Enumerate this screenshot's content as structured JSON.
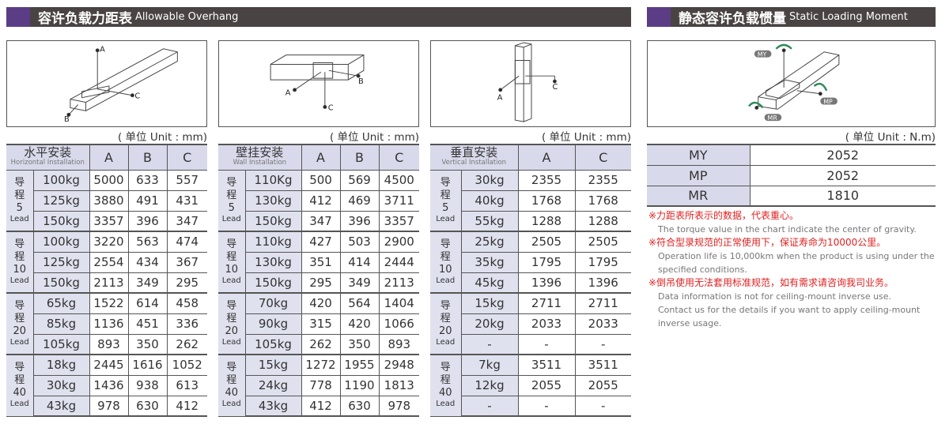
{
  "headers": {
    "left": {
      "cn": "容许负载力距表",
      "en": "Allowable Overhang"
    },
    "right": {
      "cn": "静态容许负载惯量",
      "en": "Static Loading Moment"
    }
  },
  "diagram_labels": {
    "a": "A",
    "b": "B",
    "c": "C",
    "my": "MY",
    "mp": "MP",
    "mr": "MR"
  },
  "units": {
    "mm": "( 单位 Unit : mm)",
    "nm": "( 单位 Unit : N.m)"
  },
  "tables": [
    {
      "title_cn": "水平安装",
      "title_en": "Horizontal Installation",
      "columns": [
        "A",
        "B",
        "C"
      ],
      "groups": [
        {
          "lead_cn": [
            "导",
            "程"
          ],
          "lead": "5",
          "lead_en": "Lead",
          "rows": [
            [
              "100kg",
              "5000",
              "633",
              "557"
            ],
            [
              "125kg",
              "3880",
              "491",
              "431"
            ],
            [
              "150kg",
              "3357",
              "396",
              "347"
            ]
          ]
        },
        {
          "lead_cn": [
            "导",
            "程"
          ],
          "lead": "10",
          "lead_en": "Lead",
          "rows": [
            [
              "100kg",
              "3220",
              "563",
              "474"
            ],
            [
              "125kg",
              "2554",
              "434",
              "367"
            ],
            [
              "150kg",
              "2113",
              "349",
              "295"
            ]
          ]
        },
        {
          "lead_cn": [
            "导",
            "程"
          ],
          "lead": "20",
          "lead_en": "Lead",
          "rows": [
            [
              "65kg",
              "1522",
              "614",
              "458"
            ],
            [
              "85kg",
              "1136",
              "451",
              "336"
            ],
            [
              "105kg",
              "893",
              "350",
              "262"
            ]
          ]
        },
        {
          "lead_cn": [
            "导",
            "程"
          ],
          "lead": "40",
          "lead_en": "Lead",
          "rows": [
            [
              "18kg",
              "2445",
              "1616",
              "1052"
            ],
            [
              "30kg",
              "1436",
              "938",
              "613"
            ],
            [
              "43kg",
              "978",
              "630",
              "412"
            ]
          ]
        }
      ]
    },
    {
      "title_cn": "壁挂安装",
      "title_en": "Wall Installation",
      "columns": [
        "A",
        "B",
        "C"
      ],
      "groups": [
        {
          "lead_cn": [
            "导",
            "程"
          ],
          "lead": "5",
          "lead_en": "Lead",
          "rows": [
            [
              "110Kg",
              "500",
              "569",
              "4500"
            ],
            [
              "130kg",
              "412",
              "469",
              "3711"
            ],
            [
              "150kg",
              "347",
              "396",
              "3357"
            ]
          ]
        },
        {
          "lead_cn": [
            "导",
            "程"
          ],
          "lead": "10",
          "lead_en": "Lead",
          "rows": [
            [
              "110kg",
              "427",
              "503",
              "2900"
            ],
            [
              "130kg",
              "351",
              "414",
              "2444"
            ],
            [
              "150kg",
              "295",
              "349",
              "2113"
            ]
          ]
        },
        {
          "lead_cn": [
            "导",
            "程"
          ],
          "lead": "20",
          "lead_en": "Lead",
          "rows": [
            [
              "70kg",
              "420",
              "564",
              "1404"
            ],
            [
              "90kg",
              "315",
              "420",
              "1066"
            ],
            [
              "105kg",
              "262",
              "350",
              "893"
            ]
          ]
        },
        {
          "lead_cn": [
            "导",
            "程"
          ],
          "lead": "40",
          "lead_en": "Lead",
          "rows": [
            [
              "15kg",
              "1272",
              "1955",
              "2948"
            ],
            [
              "24kg",
              "778",
              "1190",
              "1813"
            ],
            [
              "43kg",
              "412",
              "630",
              "978"
            ]
          ]
        }
      ]
    },
    {
      "title_cn": "垂直安装",
      "title_en": "Vertical Installation",
      "columns": [
        "A",
        "C"
      ],
      "groups": [
        {
          "lead_cn": [
            "导",
            "程"
          ],
          "lead": "5",
          "lead_en": "Lead",
          "rows": [
            [
              "30kg",
              "2355",
              "2355"
            ],
            [
              "40kg",
              "1768",
              "1768"
            ],
            [
              "55kg",
              "1288",
              "1288"
            ]
          ]
        },
        {
          "lead_cn": [
            "导",
            "程"
          ],
          "lead": "10",
          "lead_en": "Lead",
          "rows": [
            [
              "25kg",
              "2505",
              "2505"
            ],
            [
              "35kg",
              "1795",
              "1795"
            ],
            [
              "45kg",
              "1396",
              "1396"
            ]
          ]
        },
        {
          "lead_cn": [
            "导",
            "程"
          ],
          "lead": "20",
          "lead_en": "Lead",
          "rows": [
            [
              "15kg",
              "2711",
              "2711"
            ],
            [
              "20kg",
              "2033",
              "2033"
            ],
            [
              "-",
              "-",
              "-"
            ]
          ]
        },
        {
          "lead_cn": [
            "导",
            "程"
          ],
          "lead": "40",
          "lead_en": "Lead",
          "rows": [
            [
              "7kg",
              "3511",
              "3511"
            ],
            [
              "12kg",
              "2055",
              "2055"
            ],
            [
              "-",
              "-",
              "-"
            ]
          ]
        }
      ]
    }
  ],
  "moment": [
    [
      "MY",
      "2052"
    ],
    [
      "MP",
      "2052"
    ],
    [
      "MR",
      "1810"
    ]
  ],
  "notes": [
    {
      "cn": "※力距表所表示的数据，代表重心。",
      "en": [
        "The torque value in the chart indicate the center of gravity."
      ]
    },
    {
      "cn": "※符合型录规范的正常使用下，保证寿命为10000公里。",
      "en": [
        "Operation life is 10,000km when the product is using under the",
        " specified conditions."
      ]
    },
    {
      "cn": "※倒吊使用无法套用标准规范，如有需求请咨询我司业务。",
      "en": [
        "Data information is not for ceiling-mount inverse use.",
        "Contact us for the details if you want to apply ceiling-mount",
        "inverse usage."
      ]
    }
  ],
  "colors": {
    "header_bg": "#494443",
    "accent": "#5b3d86",
    "table_header": "#d8daeb",
    "note_red": "#e02020",
    "arrow_green": "#2e8b57"
  }
}
